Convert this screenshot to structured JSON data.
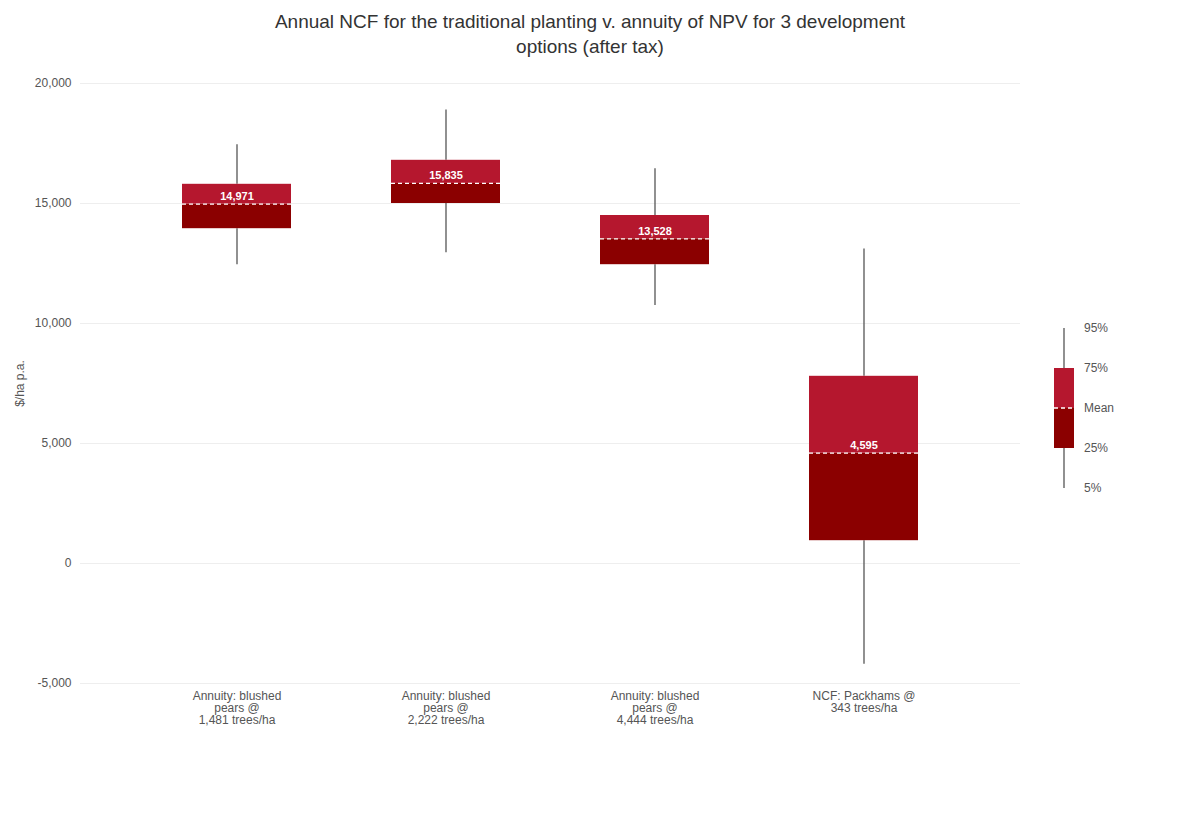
{
  "chart_data": {
    "type": "box",
    "title": "Annual NCF for the traditional planting v. annuity of NPV for 3 development\noptions (after tax)",
    "ylabel": "$/ha p.a.",
    "categories": [
      "Annuity: blushed\npears @\n1,481 trees/ha",
      "Annuity: blushed\npears @\n2,222 trees/ha",
      "Annuity: blushed\npears @\n4,444 trees/ha",
      "NCF: Packhams @\n343 trees/ha"
    ],
    "boxes": [
      {
        "mean": 14971,
        "q25": 13950,
        "q75": 15800,
        "p5": 12450,
        "p95": 17450
      },
      {
        "mean": 15835,
        "q25": 15000,
        "q75": 16800,
        "p5": 12950,
        "p95": 18900
      },
      {
        "mean": 13528,
        "q25": 12450,
        "q75": 14500,
        "p5": 10750,
        "p95": 16450
      },
      {
        "mean": 4595,
        "q25": 950,
        "q75": 7800,
        "p5": -4200,
        "p95": 13100
      }
    ],
    "value_labels": [
      "14,971",
      "15,835",
      "13,528",
      "4,595"
    ],
    "data_labels": true,
    "colors": [
      "#8B0000",
      "#b5172e"
    ],
    "stat_labels": [
      "95%",
      "75%",
      "Mean",
      "25%",
      "5%"
    ],
    "legend": "right",
    "ylim": [
      -5000,
      20000
    ],
    "yticks": [
      {
        "value": -5000,
        "label": "-5,000"
      },
      0,
      {
        "value": 5000,
        "label": "5,000"
      },
      {
        "value": 10000,
        "label": "10,000"
      },
      {
        "value": 15000,
        "label": "15,000"
      },
      {
        "value": 20000,
        "label": "20,000"
      }
    ],
    "grid": true
  }
}
